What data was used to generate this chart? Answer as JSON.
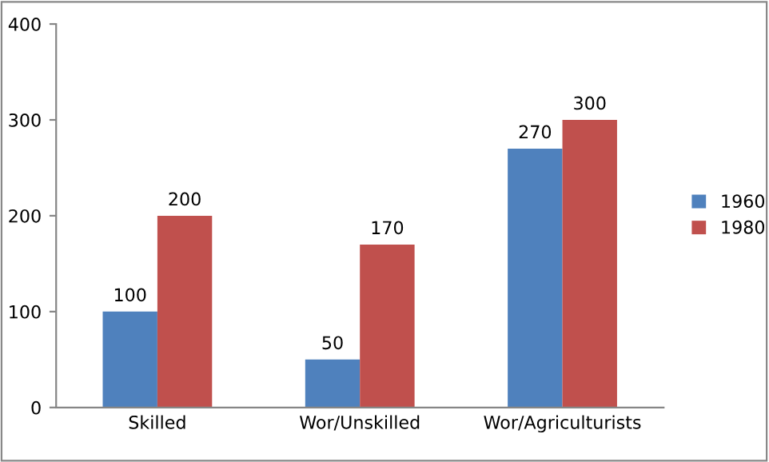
{
  "chart_data": {
    "type": "bar",
    "categories": [
      "Skilled",
      "Wor/Unskilled",
      "Wor/Agriculturists"
    ],
    "series": [
      {
        "name": "1960",
        "color": "#4f81bd",
        "values": [
          100,
          50,
          270
        ]
      },
      {
        "name": "1980",
        "color": "#c0504d",
        "values": [
          200,
          170,
          300
        ]
      }
    ],
    "ylim": [
      0,
      400
    ],
    "yticks": [
      0,
      100,
      200,
      300,
      400
    ],
    "grid": false,
    "legend": "right",
    "data_labels": true
  }
}
